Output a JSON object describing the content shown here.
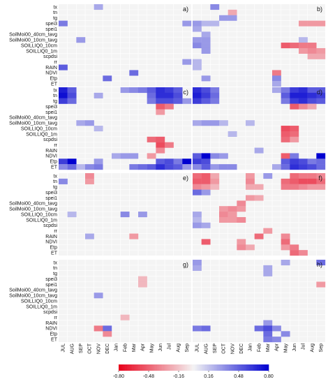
{
  "chart_data": {
    "type": "heatmap",
    "variables": [
      "tx",
      "tn",
      "tg",
      "spei3",
      "spei1",
      "SoilMoi00_40cm_tavg",
      "SoilMoi00_10cm_tavg",
      "SOILLIQ0_10cm",
      "SOILLIQ0_1m",
      "scpdsi",
      "rr",
      "RAIN",
      "NDVI",
      "Etp",
      "ET"
    ],
    "months": [
      "JUL",
      "AUG",
      "SEP",
      "OCT",
      "NOV",
      "DEC",
      "Jan",
      "Feb",
      "Mar",
      "Apr",
      "May",
      "Jun",
      "Jul",
      "Aug",
      "Sep"
    ],
    "colorbar": {
      "ticks": [
        -0.8,
        -0.48,
        -0.16,
        0.16,
        0.48,
        0.8
      ],
      "tick_labels": [
        "-0.80",
        "-0.48",
        "-0.16",
        "0.16",
        "0.48",
        "0.80"
      ],
      "range": [
        -0.8,
        0.8
      ],
      "low_color": "#e8001a",
      "mid_color": "#f4f4f4",
      "high_color": "#0000d0"
    },
    "panels": [
      {
        "label": "a)",
        "cells": [
          [
            0,
            4,
            0.25
          ],
          [
            3,
            0,
            0.4
          ],
          [
            3,
            14,
            0.3
          ],
          [
            6,
            2,
            0.3
          ],
          [
            10,
            14,
            0.3
          ],
          [
            11,
            0,
            0.5
          ],
          [
            13,
            5,
            0.45
          ],
          [
            12,
            8,
            0.45
          ]
        ]
      },
      {
        "label": "b)",
        "cells": [
          [
            0,
            2,
            0.35
          ],
          [
            1,
            4,
            -0.25
          ],
          [
            2,
            3,
            0.3
          ],
          [
            2,
            4,
            0.3
          ],
          [
            3,
            0,
            0.3
          ],
          [
            3,
            1,
            0.2
          ],
          [
            3,
            2,
            0.2
          ],
          [
            3,
            12,
            -0.3
          ],
          [
            3,
            13,
            -0.3
          ],
          [
            3,
            14,
            -0.3
          ],
          [
            4,
            0,
            0.25
          ],
          [
            5,
            1,
            0.25
          ],
          [
            6,
            0,
            0.3
          ],
          [
            6,
            1,
            0.3
          ],
          [
            6,
            12,
            0.2
          ],
          [
            7,
            0,
            0.35
          ],
          [
            7,
            1,
            0.3
          ],
          [
            7,
            10,
            -0.5
          ],
          [
            7,
            11,
            -0.45
          ],
          [
            7,
            12,
            -0.4
          ],
          [
            7,
            13,
            -0.4
          ],
          [
            8,
            1,
            0.3
          ],
          [
            8,
            12,
            -0.3
          ],
          [
            8,
            13,
            -0.35
          ],
          [
            8,
            14,
            -0.3
          ],
          [
            9,
            13,
            -0.25
          ],
          [
            9,
            14,
            -0.25
          ],
          [
            10,
            0,
            0.2
          ],
          [
            11,
            0,
            0.2
          ],
          [
            12,
            9,
            -0.4
          ],
          [
            13,
            1,
            0.3
          ],
          [
            13,
            9,
            0.35
          ],
          [
            14,
            9,
            0.25
          ]
        ]
      },
      {
        "label": "c)",
        "cells": [
          [
            0,
            0,
            0.7
          ],
          [
            0,
            1,
            0.5
          ],
          [
            0,
            7,
            0.3
          ],
          [
            0,
            8,
            0.35
          ],
          [
            0,
            9,
            0.4
          ],
          [
            0,
            10,
            0.5
          ],
          [
            0,
            11,
            0.65
          ],
          [
            0,
            12,
            0.6
          ],
          [
            0,
            13,
            0.5
          ],
          [
            1,
            0,
            0.75
          ],
          [
            1,
            1,
            0.55
          ],
          [
            1,
            4,
            0.25
          ],
          [
            1,
            10,
            0.45
          ],
          [
            1,
            11,
            0.65
          ],
          [
            1,
            12,
            0.65
          ],
          [
            1,
            13,
            0.55
          ],
          [
            2,
            0,
            0.6
          ],
          [
            2,
            1,
            0.45
          ],
          [
            2,
            10,
            0.4
          ],
          [
            2,
            11,
            0.55
          ],
          [
            2,
            12,
            0.55
          ],
          [
            2,
            13,
            0.5
          ],
          [
            2,
            14,
            0.3
          ],
          [
            3,
            11,
            -0.5
          ],
          [
            3,
            12,
            -0.4
          ],
          [
            4,
            11,
            -0.3
          ],
          [
            6,
            2,
            0.25
          ],
          [
            6,
            3,
            0.3
          ],
          [
            7,
            4,
            0.2
          ],
          [
            9,
            10,
            -0.45
          ],
          [
            9,
            11,
            -0.5
          ],
          [
            10,
            11,
            -0.55
          ],
          [
            10,
            12,
            -0.4
          ],
          [
            11,
            11,
            -0.35
          ],
          [
            12,
            6,
            0.25
          ],
          [
            12,
            7,
            0.3
          ],
          [
            12,
            8,
            0.3
          ],
          [
            12,
            10,
            -0.3
          ],
          [
            13,
            0,
            0.6
          ],
          [
            13,
            1,
            0.9
          ],
          [
            13,
            4,
            0.3
          ],
          [
            13,
            11,
            0.5
          ],
          [
            13,
            12,
            0.55
          ],
          [
            13,
            13,
            0.4
          ],
          [
            13,
            14,
            0.8
          ],
          [
            14,
            0,
            0.35
          ],
          [
            14,
            1,
            0.45
          ],
          [
            14,
            2,
            0.2
          ],
          [
            14,
            3,
            0.35
          ],
          [
            14,
            4,
            0.4
          ],
          [
            14,
            8,
            0.4
          ],
          [
            14,
            9,
            0.45
          ],
          [
            14,
            10,
            0.5
          ],
          [
            14,
            11,
            0.65
          ],
          [
            14,
            12,
            0.55
          ],
          [
            14,
            13,
            0.5
          ],
          [
            14,
            14,
            0.3
          ]
        ]
      },
      {
        "label": "d)",
        "cells": [
          [
            0,
            0,
            0.65
          ],
          [
            0,
            1,
            0.55
          ],
          [
            0,
            2,
            0.4
          ],
          [
            0,
            9,
            0.25
          ],
          [
            0,
            10,
            0.4
          ],
          [
            0,
            11,
            0.6
          ],
          [
            0,
            12,
            0.65
          ],
          [
            0,
            13,
            0.5
          ],
          [
            0,
            14,
            0.5
          ],
          [
            1,
            0,
            0.7
          ],
          [
            1,
            1,
            0.6
          ],
          [
            1,
            2,
            0.45
          ],
          [
            1,
            10,
            0.5
          ],
          [
            1,
            11,
            0.7
          ],
          [
            1,
            12,
            0.7
          ],
          [
            1,
            13,
            0.65
          ],
          [
            1,
            14,
            0.6
          ],
          [
            2,
            0,
            0.6
          ],
          [
            2,
            1,
            0.5
          ],
          [
            2,
            2,
            0.4
          ],
          [
            2,
            10,
            0.4
          ],
          [
            2,
            11,
            0.6
          ],
          [
            2,
            12,
            0.65
          ],
          [
            2,
            13,
            0.55
          ],
          [
            2,
            14,
            0.5
          ],
          [
            3,
            11,
            -0.5
          ],
          [
            3,
            12,
            -0.35
          ],
          [
            3,
            13,
            -0.25
          ],
          [
            6,
            0,
            0.25
          ],
          [
            6,
            1,
            0.3
          ],
          [
            6,
            2,
            0.3
          ],
          [
            6,
            3,
            0.2
          ],
          [
            6,
            6,
            0.2
          ],
          [
            7,
            10,
            -0.55
          ],
          [
            7,
            11,
            -0.5
          ],
          [
            8,
            4,
            0.2
          ],
          [
            8,
            10,
            -0.5
          ],
          [
            8,
            11,
            -0.45
          ],
          [
            9,
            10,
            -0.45
          ],
          [
            9,
            11,
            -0.3
          ],
          [
            11,
            7,
            0.25
          ],
          [
            12,
            0,
            0.5
          ],
          [
            12,
            1,
            0.95
          ],
          [
            12,
            2,
            0.35
          ],
          [
            12,
            3,
            0.3
          ],
          [
            12,
            10,
            -0.5
          ],
          [
            12,
            11,
            0.4
          ],
          [
            12,
            14,
            0.85
          ],
          [
            13,
            0,
            0.6
          ],
          [
            13,
            1,
            0.55
          ],
          [
            13,
            10,
            0.5
          ],
          [
            13,
            11,
            0.6
          ],
          [
            13,
            12,
            0.55
          ],
          [
            13,
            13,
            0.4
          ],
          [
            13,
            14,
            0.45
          ],
          [
            14,
            0,
            0.35
          ],
          [
            14,
            1,
            0.5
          ],
          [
            14,
            2,
            0.3
          ],
          [
            14,
            3,
            0.35
          ],
          [
            14,
            4,
            0.35
          ],
          [
            14,
            9,
            0.25
          ],
          [
            14,
            10,
            0.45
          ],
          [
            14,
            11,
            0.65
          ],
          [
            14,
            12,
            0.6
          ],
          [
            14,
            13,
            0.55
          ],
          [
            14,
            14,
            0.45
          ]
        ]
      },
      {
        "label": "e)",
        "cells": [
          [
            0,
            3,
            -0.35
          ],
          [
            1,
            0,
            0.35
          ],
          [
            1,
            3,
            -0.3
          ],
          [
            7,
            1,
            0.2
          ],
          [
            7,
            7,
            0.35
          ],
          [
            7,
            9,
            0.3
          ],
          [
            11,
            3,
            0.25
          ],
          [
            11,
            8,
            -0.3
          ]
        ]
      },
      {
        "label": "f)",
        "cells": [
          [
            0,
            0,
            -0.45
          ],
          [
            0,
            1,
            -0.5
          ],
          [
            0,
            2,
            -0.25
          ],
          [
            0,
            6,
            -0.3
          ],
          [
            0,
            8,
            0.3
          ],
          [
            0,
            11,
            -0.45
          ],
          [
            0,
            12,
            -0.4
          ],
          [
            0,
            13,
            -0.4
          ],
          [
            0,
            14,
            -0.35
          ],
          [
            1,
            0,
            -0.5
          ],
          [
            1,
            1,
            -0.5
          ],
          [
            1,
            2,
            -0.3
          ],
          [
            1,
            6,
            -0.35
          ],
          [
            1,
            10,
            -0.45
          ],
          [
            1,
            11,
            -0.5
          ],
          [
            1,
            12,
            -0.55
          ],
          [
            1,
            13,
            -0.55
          ],
          [
            1,
            14,
            -0.45
          ],
          [
            2,
            0,
            -0.35
          ],
          [
            2,
            1,
            -0.3
          ],
          [
            2,
            2,
            -0.2
          ],
          [
            2,
            6,
            -0.25
          ],
          [
            2,
            7,
            -0.25
          ],
          [
            2,
            10,
            -0.4
          ],
          [
            2,
            11,
            -0.4
          ],
          [
            2,
            12,
            -0.35
          ],
          [
            2,
            13,
            -0.3
          ],
          [
            2,
            14,
            -0.3
          ],
          [
            3,
            0,
            0.45
          ],
          [
            3,
            1,
            0.3
          ],
          [
            4,
            6,
            -0.3
          ],
          [
            4,
            7,
            -0.25
          ],
          [
            5,
            5,
            -0.35
          ],
          [
            6,
            3,
            -0.3
          ],
          [
            6,
            4,
            -0.35
          ],
          [
            6,
            5,
            -0.3
          ],
          [
            7,
            0,
            0.25
          ],
          [
            7,
            3,
            -0.35
          ],
          [
            7,
            4,
            -0.3
          ],
          [
            8,
            0,
            0.2
          ],
          [
            8,
            3,
            -0.3
          ],
          [
            8,
            4,
            -0.3
          ],
          [
            8,
            5,
            -0.35
          ],
          [
            9,
            0,
            0.3
          ],
          [
            9,
            1,
            0.25
          ],
          [
            10,
            8,
            -0.3
          ],
          [
            11,
            7,
            -0.45
          ],
          [
            11,
            10,
            -0.35
          ],
          [
            12,
            1,
            -0.5
          ],
          [
            12,
            5,
            -0.3
          ],
          [
            12,
            10,
            -0.45
          ],
          [
            13,
            5,
            -0.35
          ],
          [
            13,
            6,
            -0.25
          ],
          [
            13,
            10,
            -0.3
          ],
          [
            13,
            11,
            -0.4
          ],
          [
            14,
            11,
            -0.45
          ],
          [
            14,
            12,
            -0.35
          ]
        ]
      },
      {
        "label": "g)",
        "cells": [
          [
            6,
            4,
            0.3
          ],
          [
            3,
            9,
            -0.2
          ],
          [
            4,
            9,
            -0.2
          ],
          [
            10,
            7,
            -0.2
          ],
          [
            12,
            4,
            -0.4
          ],
          [
            12,
            5,
            0.45
          ],
          [
            13,
            5,
            -0.35
          ]
        ]
      },
      {
        "label": "h)",
        "cells": [
          [
            0,
            0,
            0.3
          ],
          [
            1,
            0,
            0.25
          ],
          [
            0,
            10,
            0.25
          ],
          [
            0,
            14,
            0.45
          ],
          [
            1,
            8,
            0.25
          ],
          [
            2,
            8,
            0.25
          ],
          [
            4,
            14,
            -0.3
          ],
          [
            11,
            8,
            0.3
          ],
          [
            12,
            0,
            0.4
          ],
          [
            12,
            1,
            0.45
          ],
          [
            12,
            7,
            0.45
          ],
          [
            12,
            8,
            0.55
          ],
          [
            12,
            9,
            0.35
          ],
          [
            13,
            8,
            0.45
          ],
          [
            13,
            10,
            0.35
          ],
          [
            14,
            8,
            0.4
          ],
          [
            14,
            9,
            0.35
          ]
        ]
      }
    ]
  }
}
